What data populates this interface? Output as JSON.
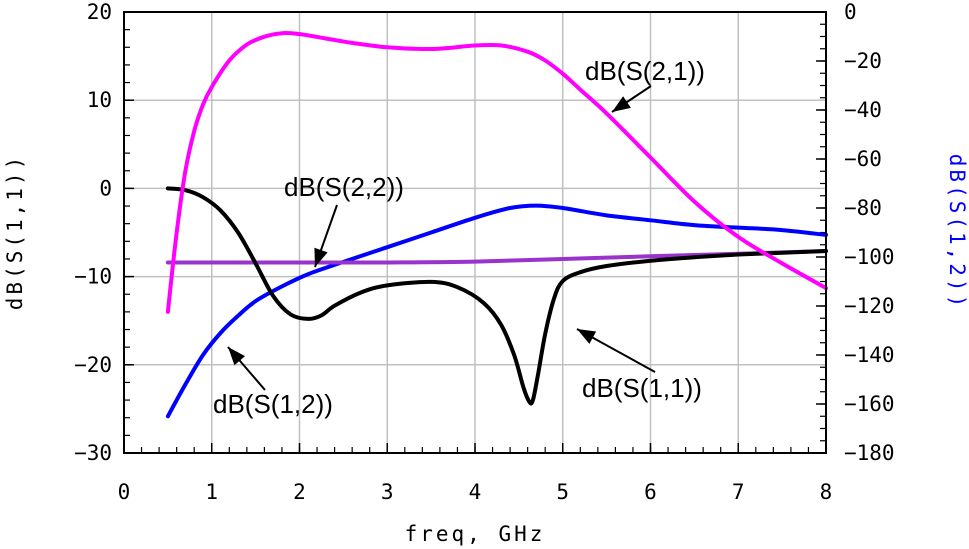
{
  "colors": {
    "s21": "#ff00ff",
    "s11": "#000000",
    "s12": "#0000ff",
    "s22": "#9933cc",
    "grid": "#c0c0c0",
    "right_axis_label": "#0000ff"
  },
  "chart_data": {
    "type": "line",
    "title": "",
    "xlabel": "freq, GHz",
    "ylabel_left": "dB(S(1,1))",
    "ylabel_right": "dB(S(1,2))",
    "xlim": [
      0,
      8
    ],
    "ylim_left": [
      -30,
      20
    ],
    "ylim_right": [
      -180,
      0
    ],
    "grid": true,
    "x_ticks": [
      "0",
      "1",
      "2",
      "3",
      "4",
      "5",
      "6",
      "7",
      "8"
    ],
    "y_left_ticks": [
      "20",
      "10",
      "0",
      "−10",
      "−20",
      "−30"
    ],
    "y_right_ticks": [
      "0",
      "−20",
      "−40",
      "−60",
      "−80",
      "−100",
      "−120",
      "−140",
      "−160",
      "−180"
    ],
    "series": [
      {
        "name": "dB(S(2,1))",
        "axis": "left",
        "color": "#ff00ff",
        "x": [
          0.5,
          0.6,
          0.7,
          0.8,
          0.9,
          1.0,
          1.2,
          1.4,
          1.6,
          1.8,
          2.0,
          2.3,
          2.6,
          3.0,
          3.5,
          4.0,
          4.3,
          4.6,
          4.8,
          5.0,
          5.2,
          5.5,
          6.0,
          6.5,
          7.0,
          7.5,
          8.0
        ],
        "y": [
          -14,
          -5,
          2,
          6.5,
          9.5,
          11.5,
          14.5,
          16.3,
          17.2,
          17.6,
          17.5,
          17.0,
          16.5,
          16.0,
          15.8,
          16.2,
          16.2,
          15.5,
          14.5,
          13.0,
          11.2,
          8.5,
          3.5,
          -1.5,
          -5.5,
          -8.5,
          -11.3
        ]
      },
      {
        "name": "dB(S(1,1))",
        "axis": "left",
        "color": "#000000",
        "x": [
          0.5,
          0.7,
          0.9,
          1.1,
          1.3,
          1.5,
          1.7,
          1.9,
          2.1,
          2.25,
          2.4,
          2.7,
          3.0,
          3.5,
          3.8,
          4.1,
          4.3,
          4.45,
          4.55,
          4.62,
          4.66,
          4.72,
          4.8,
          4.9,
          5.0,
          5.2,
          5.5,
          6.0,
          6.5,
          7.0,
          7.5,
          8.0
        ],
        "y": [
          0,
          -0.2,
          -1.0,
          -2.5,
          -5.0,
          -8.5,
          -12.2,
          -14.3,
          -14.8,
          -14.4,
          -13.3,
          -11.8,
          -11.0,
          -10.6,
          -11.2,
          -13.0,
          -15.5,
          -19.0,
          -22.5,
          -24.2,
          -24.0,
          -21.0,
          -16.5,
          -12.5,
          -10.5,
          -9.5,
          -8.8,
          -8.2,
          -7.8,
          -7.5,
          -7.3,
          -7.1
        ]
      },
      {
        "name": "dB(S(1,2))",
        "axis": "right",
        "color": "#0000ff",
        "x": [
          0.5,
          0.7,
          0.9,
          1.1,
          1.3,
          1.5,
          1.8,
          2.1,
          2.5,
          3.0,
          3.5,
          4.0,
          4.4,
          4.7,
          5.0,
          5.5,
          6.0,
          6.5,
          7.0,
          7.5,
          8.0
        ],
        "y": [
          -165,
          -152,
          -140,
          -131,
          -124,
          -118,
          -112,
          -107,
          -102,
          -96,
          -90,
          -84,
          -80,
          -79,
          -80,
          -83,
          -85,
          -87,
          -88,
          -89,
          -91
        ]
      },
      {
        "name": "dB(S(2,2))",
        "axis": "left",
        "color": "#9933cc",
        "x": [
          0.5,
          2.0,
          3.0,
          4.0,
          5.0,
          6.0,
          7.0,
          8.0
        ],
        "y": [
          -8.4,
          -8.4,
          -8.4,
          -8.3,
          -8.0,
          -7.7,
          -7.4,
          -7.1
        ]
      }
    ],
    "annotations": [
      {
        "text": "dB(S(2,1))",
        "series": "dB(S(2,1))"
      },
      {
        "text": "dB(S(2,2))",
        "series": "dB(S(2,2))"
      },
      {
        "text": "dB(S(1,2))",
        "series": "dB(S(1,2))"
      },
      {
        "text": "dB(S(1,1))",
        "series": "dB(S(1,1))"
      }
    ]
  }
}
